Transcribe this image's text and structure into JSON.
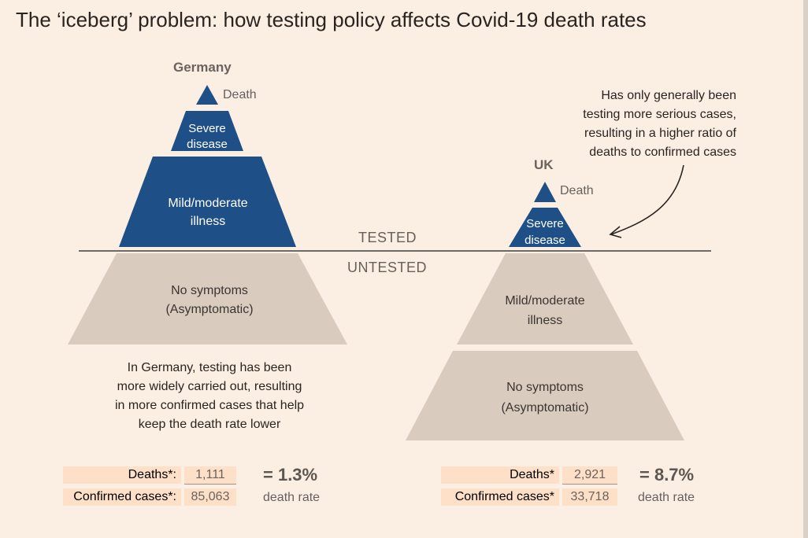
{
  "title": "The ‘iceberg’ problem: how testing policy affects Covid-19 death rates",
  "divider": {
    "above": "TESTED",
    "below": "UNTESTED"
  },
  "germany": {
    "name": "Germany",
    "tiers": {
      "death": "Death",
      "severe_l1": "Severe",
      "severe_l2": "disease",
      "mild_l1": "Mild/moderate",
      "mild_l2": "illness",
      "nosym_l1": "No symptoms",
      "nosym_l2": "(Asymptomatic)"
    },
    "note": [
      "In Germany, testing has been",
      "more widely carried out, resulting",
      "in more confirmed cases that help",
      "keep the death rate lower"
    ],
    "stats": {
      "deaths_label": "Deaths*:",
      "deaths": "1,111",
      "cases_label": "Confirmed cases*:",
      "cases": "85,063",
      "rate": "= 1.3%",
      "rate_label": "death rate"
    }
  },
  "uk": {
    "name": "UK",
    "tiers": {
      "death": "Death",
      "severe_l1": "Severe",
      "severe_l2": "disease",
      "mild_l1": "Mild/moderate",
      "mild_l2": "illness",
      "nosym_l1": "No symptoms",
      "nosym_l2": "(Asymptomatic)"
    },
    "note": [
      "Has only generally been",
      "testing more serious cases,",
      "resulting in a higher ratio of",
      "deaths to confirmed cases"
    ],
    "stats": {
      "deaths_label": "Deaths*",
      "deaths": "2,921",
      "cases_label": "Confirmed cases*",
      "cases": "33,718",
      "rate": "= 8.7%",
      "rate_label": "death rate"
    }
  },
  "colors": {
    "tested": "#1e4f86",
    "untested": "#d9cbbe",
    "background": "#fbeee3"
  }
}
